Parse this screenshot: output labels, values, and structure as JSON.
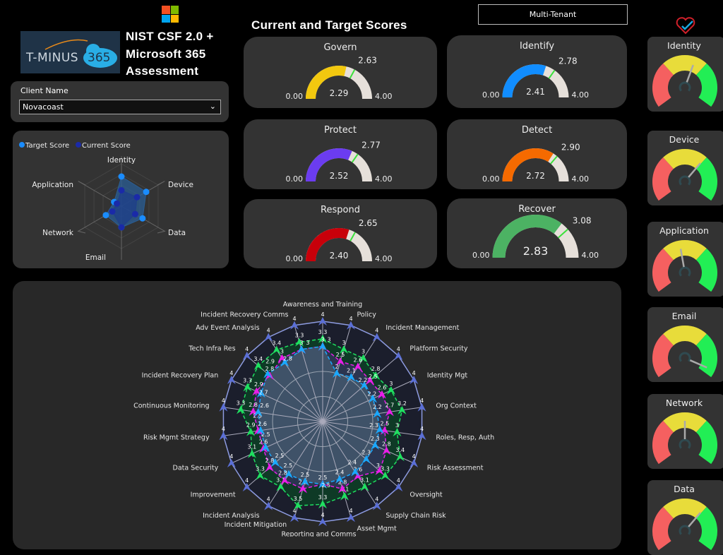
{
  "header": {
    "title_lines": [
      "NIST CSF 2.0 +",
      "Microsoft 365",
      "Assessment"
    ],
    "logo_text": "T-MINUS",
    "logo_badge": "365",
    "scores_title": "Current and Target Scores",
    "tenant_button": "Multi-Tenant"
  },
  "client_filter": {
    "label": "Client Name",
    "value": "Novacoast"
  },
  "category_radar": {
    "legend": [
      {
        "name": "Target Score",
        "color": "#1a8cff"
      },
      {
        "name": "Current Score",
        "color": "#1a2aa8"
      }
    ],
    "axes": [
      "Identity",
      "Device",
      "Data",
      "Email",
      "Network",
      "Application"
    ],
    "target": [
      2.8,
      2.7,
      2.3,
      2.0,
      1.7,
      0.8
    ],
    "current": [
      1.5,
      1.7,
      1.5,
      2.0,
      1.0,
      0.5
    ]
  },
  "function_gauges": [
    {
      "name": "Govern",
      "current": "2.29",
      "target": "2.63",
      "min": "0.00",
      "max": "4.00",
      "color": "#f2c80f"
    },
    {
      "name": "Identify",
      "current": "2.41",
      "target": "2.78",
      "min": "0.00",
      "max": "4.00",
      "color": "#118dff"
    },
    {
      "name": "Protect",
      "current": "2.52",
      "target": "2.77",
      "min": "0.00",
      "max": "4.00",
      "color": "#6b3cf0"
    },
    {
      "name": "Detect",
      "current": "2.72",
      "target": "2.90",
      "min": "0.00",
      "max": "4.00",
      "color": "#f56a00"
    },
    {
      "name": "Respond",
      "current": "2.40",
      "target": "2.65",
      "min": "0.00",
      "max": "4.00",
      "color": "#c8000a"
    },
    {
      "name": "Recover",
      "current": "2.83",
      "target": "3.08",
      "min": "0.00",
      "max": "4.00",
      "color": "#4cb263"
    }
  ],
  "category_gauges": [
    {
      "name": "Identity",
      "level": 0.58
    },
    {
      "name": "Device",
      "level": 0.66
    },
    {
      "name": "Application",
      "level": 0.46
    },
    {
      "name": "Email",
      "level": 0.95
    },
    {
      "name": "Network",
      "level": 0.5
    },
    {
      "name": "Data",
      "level": 0.66
    }
  ],
  "chart_data": {
    "type": "radar",
    "range": [
      0,
      4
    ],
    "axes": [
      "Awareness and Training",
      "Policy",
      "Incident Management",
      "Platform Security",
      "Identity Mgt",
      "Org Context",
      "Roles, Resp, Auth",
      "Risk Assessment",
      "Oversight",
      "Supply Chain Risk",
      "Asset Mgmt",
      "Reporting and Comms",
      "Incident Mitigation",
      "Incident Analysis",
      "Improvement",
      "Data Security",
      "Risk Mgmt Strategy",
      "Continuous Monitoring",
      "Incident Recovery Plan",
      "Tech Infra Res",
      "Adv Event Analysis",
      "Incident Recovery Comms"
    ],
    "series": [
      {
        "color": "#5b6fd6",
        "values": [
          4,
          4,
          4,
          4,
          4,
          4,
          4,
          4,
          4,
          4,
          4,
          4,
          4,
          4,
          4,
          4,
          4,
          4,
          4,
          4,
          4,
          4
        ]
      },
      {
        "color": "#1fe060",
        "values": [
          3.3,
          3,
          3,
          2.8,
          3,
          3.2,
          3,
          3.4,
          3.3,
          3.1,
          3.1,
          3.3,
          3.5,
          3.1,
          3.3,
          3.1,
          2.9,
          3.3,
          3.3,
          3.4,
          3.4,
          3.3
        ]
      },
      {
        "color": "#e81ee8",
        "values": [
          3,
          2.5,
          2.6,
          2.5,
          2.6,
          2.7,
          2.5,
          2.8,
          3,
          2.6,
          2.8,
          2.5,
          2.8,
          2.8,
          2.8,
          2.6,
          2.6,
          2.8,
          2.9,
          2.8,
          3,
          3
        ]
      },
      {
        "color": "#1aa8ff",
        "values": [
          3,
          2,
          2.1,
          2.2,
          2.2,
          2.2,
          2.3,
          2.3,
          2.3,
          2.4,
          2.4,
          2.5,
          2.5,
          2.5,
          2.5,
          2.5,
          2.5,
          2.6,
          2.7,
          2.9,
          2.8,
          3
        ]
      }
    ]
  }
}
